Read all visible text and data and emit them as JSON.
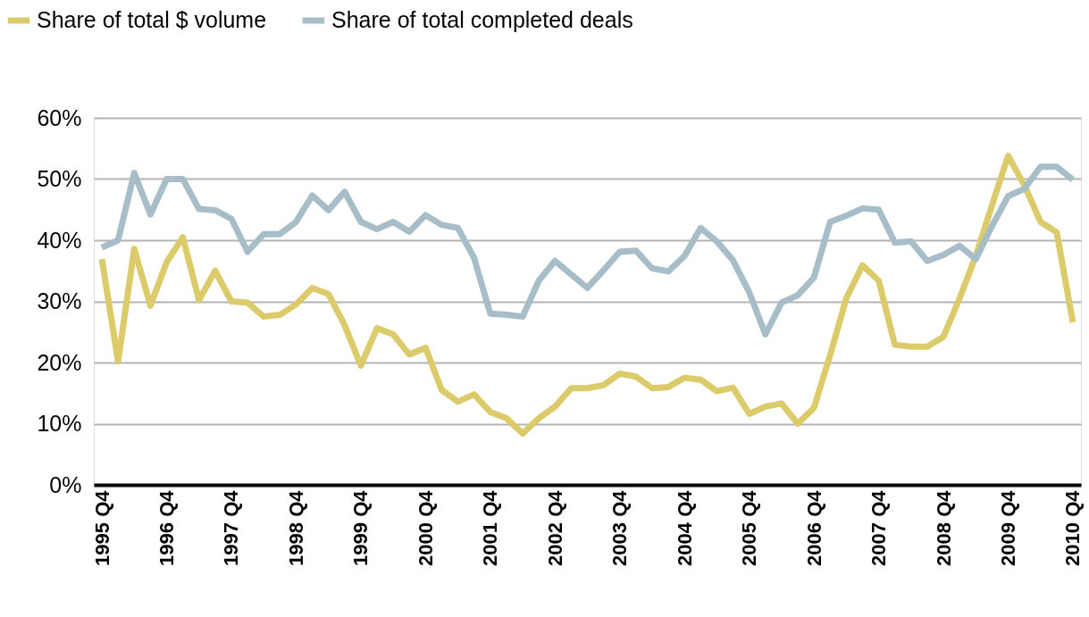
{
  "chart_data": {
    "type": "line",
    "categories": [
      "1995 Q4",
      null,
      null,
      null,
      "1996 Q4",
      null,
      null,
      null,
      "1997 Q4",
      null,
      null,
      null,
      "1998 Q4",
      null,
      null,
      null,
      "1999 Q4",
      null,
      null,
      null,
      "2000 Q4",
      null,
      null,
      null,
      "2001 Q4",
      null,
      null,
      null,
      "2002 Q4",
      null,
      null,
      null,
      "2003 Q4",
      null,
      null,
      null,
      "2004 Q4",
      null,
      null,
      null,
      "2005 Q4",
      null,
      null,
      null,
      "2006 Q4",
      null,
      null,
      null,
      "2007 Q4",
      null,
      null,
      null,
      "2008 Q4",
      null,
      null,
      null,
      "2009 Q4",
      null,
      null,
      null,
      "2010 Q4"
    ],
    "series": [
      {
        "name": "Share of total $ volume",
        "color": "#dccb6a",
        "values": [
          36.9,
          20.2,
          38.6,
          29.3,
          36.4,
          40.5,
          30.2,
          35,
          30,
          29.8,
          27.5,
          27.8,
          29.5,
          32.2,
          31.2,
          26.1,
          19.5,
          25.6,
          24.6,
          21.3,
          22.4,
          15.5,
          13.6,
          14.8,
          11.9,
          10.9,
          8.4,
          10.9,
          12.8,
          15.8,
          15.8,
          16.3,
          18.2,
          17.7,
          15.8,
          16,
          17.5,
          17.2,
          15.3,
          15.9,
          11.6,
          12.8,
          13.3,
          10,
          12.6,
          21.2,
          30.5,
          35.9,
          33.4,
          22.9,
          22.6,
          22.6,
          24.2,
          30.5,
          37.4,
          45.7,
          53.8,
          49,
          43,
          41.3,
          26.6
        ]
      },
      {
        "name": "Share of total completed deals",
        "color": "#a7bdc8",
        "values": [
          38.8,
          40,
          51,
          44.2,
          50,
          50,
          45.1,
          44.9,
          43.5,
          38.1,
          41,
          41,
          43,
          47.3,
          44.9,
          47.9,
          43,
          41.8,
          43,
          41.4,
          44.1,
          42.5,
          42,
          37.1,
          28,
          27.8,
          27.5,
          33.4,
          36.6,
          34.4,
          32.2,
          35.1,
          38.1,
          38.3,
          35.4,
          34.9,
          37.4,
          42,
          39.8,
          36.7,
          31.5,
          24.6,
          29.8,
          31,
          33.9,
          43,
          44,
          45.2,
          45,
          39.6,
          39.8,
          36.6,
          37.6,
          39.1,
          36.9,
          42.3,
          47.2,
          48.4,
          52,
          52,
          49.9
        ]
      }
    ],
    "ylim": [
      0,
      60
    ],
    "yticks": [
      {
        "value": 0,
        "label": "0%"
      },
      {
        "value": 10,
        "label": "10%"
      },
      {
        "value": 20,
        "label": "20%"
      },
      {
        "value": 30,
        "label": "30%"
      },
      {
        "value": 40,
        "label": "40%"
      },
      {
        "value": 50,
        "label": "50%"
      },
      {
        "value": 60,
        "label": "60%"
      }
    ],
    "grid": "y",
    "legend": "top left",
    "marker": "none",
    "line_style": "solid"
  }
}
